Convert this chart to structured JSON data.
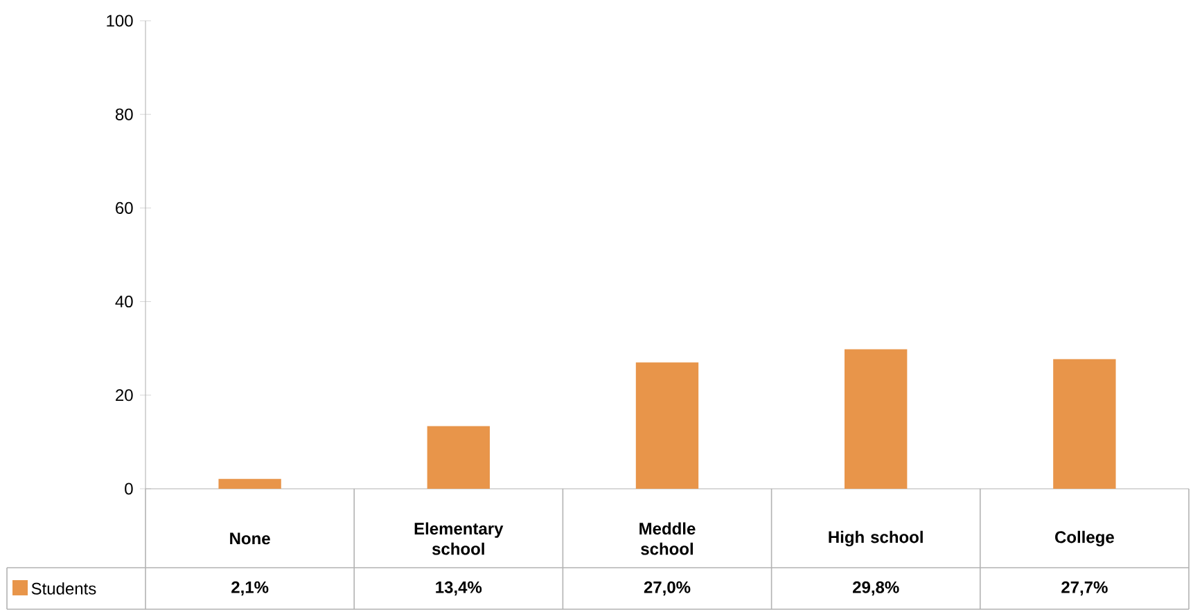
{
  "chart_data": {
    "type": "bar",
    "categories": [
      "None",
      "Elementary school",
      "Meddle school",
      "High school",
      "College"
    ],
    "series": [
      {
        "name": "Students",
        "color": "#e8954a",
        "values": [
          2.1,
          13.4,
          27.0,
          29.8,
          27.7
        ],
        "value_labels": [
          "2,1%",
          "13,4%",
          "27,0%",
          "29,8%",
          "27,7%"
        ]
      }
    ],
    "ylim": [
      0,
      100
    ],
    "yticks": [
      0,
      20,
      40,
      60,
      80,
      100
    ],
    "grid": false,
    "legend": "bottom"
  }
}
